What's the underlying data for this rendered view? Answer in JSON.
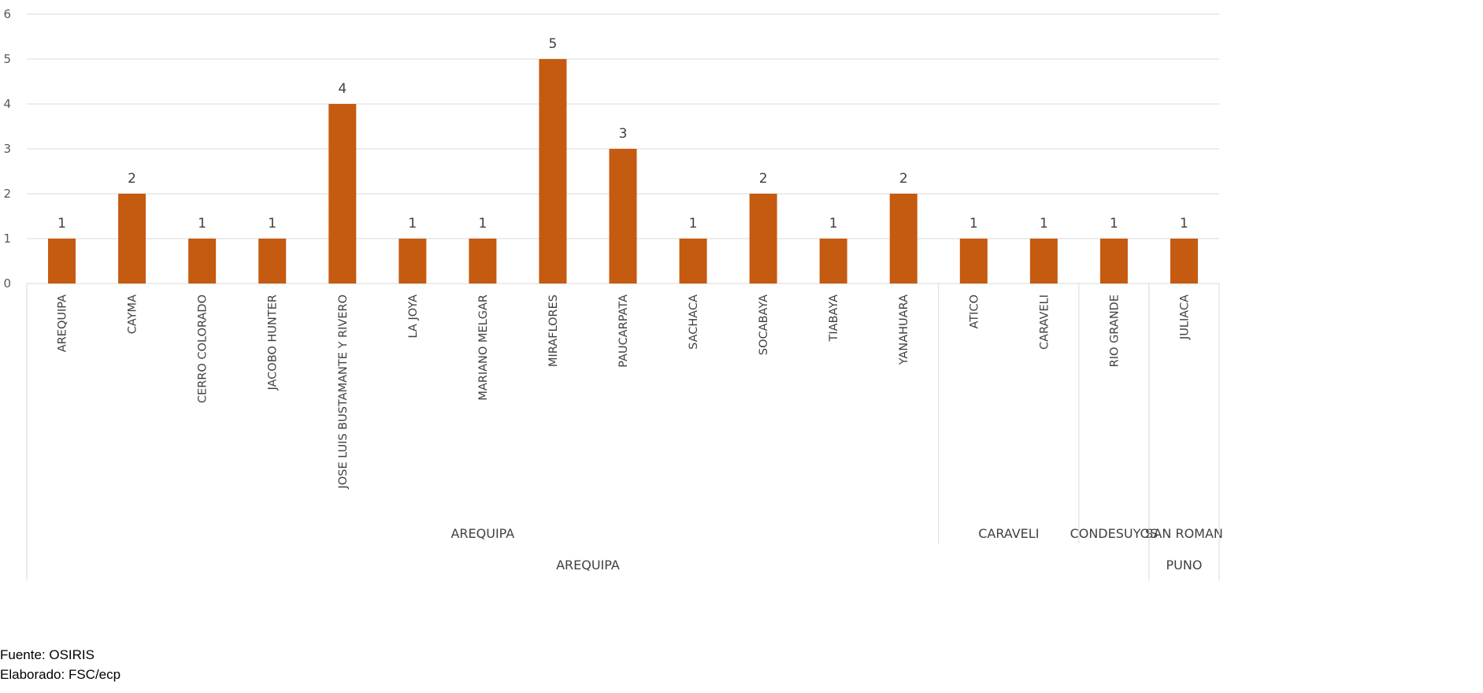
{
  "chart_data": {
    "type": "bar",
    "color": "#C55A11",
    "ylim": [
      0,
      6
    ],
    "yticks": [
      "0",
      "1",
      "2",
      "3",
      "4",
      "5",
      "6"
    ],
    "grid": true,
    "categories": [
      "AREQUIPA",
      "CAYMA",
      "CERRO COLORADO",
      "JACOBO HUNTER",
      "JOSE LUIS BUSTAMANTE Y RIVERO",
      "LA JOYA",
      "MARIANO MELGAR",
      "MIRAFLORES",
      "PAUCARPATA",
      "SACHACA",
      "SOCABAYA",
      "TIABAYA",
      "YANAHUARA",
      "ATICO",
      "CARAVELI",
      "RIO GRANDE",
      "JULIACA"
    ],
    "values": [
      1,
      2,
      1,
      1,
      4,
      1,
      1,
      5,
      3,
      1,
      2,
      1,
      2,
      1,
      1,
      1,
      1
    ],
    "province_groups": [
      {
        "label": "AREQUIPA",
        "count": 13
      },
      {
        "label": "CARAVELI",
        "count": 2
      },
      {
        "label": "CONDESUYOS",
        "count": 1
      },
      {
        "label": "SAN ROMAN",
        "count": 1
      }
    ],
    "region_groups": [
      {
        "label": "AREQUIPA",
        "count": 16
      },
      {
        "label": "PUNO",
        "count": 1
      }
    ]
  },
  "footer": {
    "source": "Fuente: OSIRIS",
    "author": "Elaborado: FSC/ecp"
  }
}
